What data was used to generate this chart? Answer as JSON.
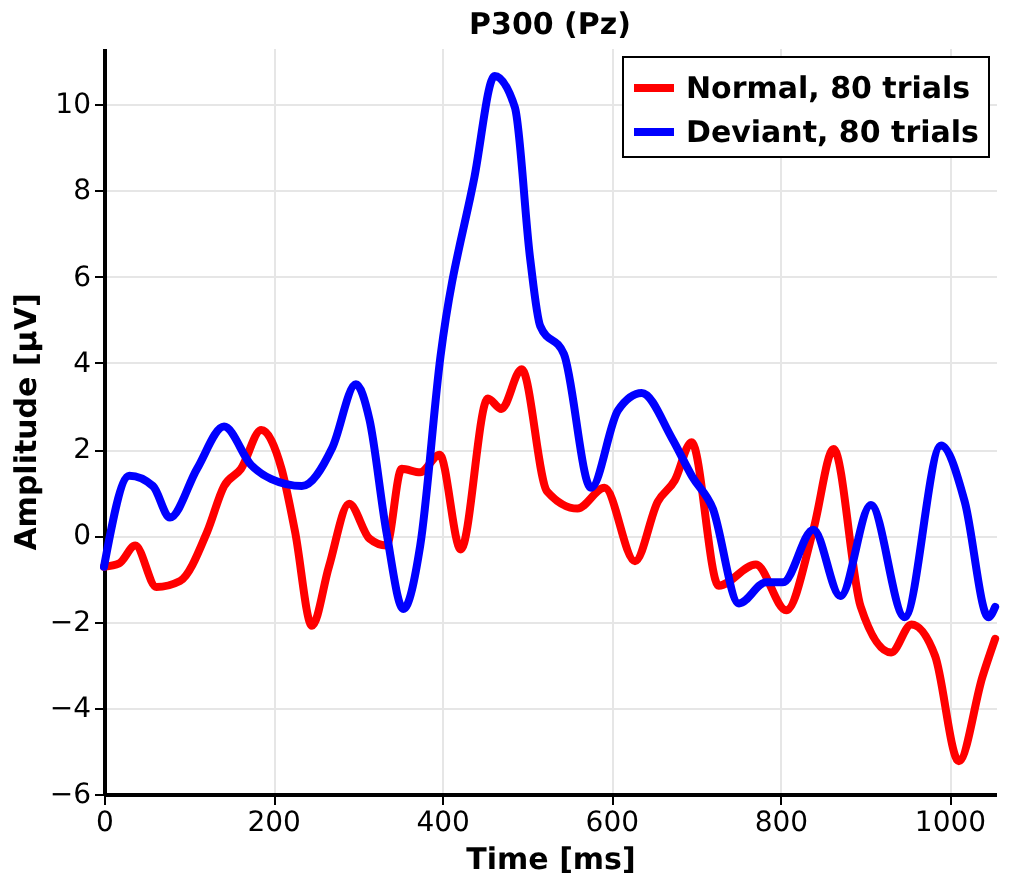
{
  "chart_data": {
    "type": "line",
    "title": "P300 (Pz)",
    "xlabel": "Time [ms]",
    "ylabel": "Amplitude [µV]",
    "xlim": [
      0,
      1055
    ],
    "ylim": [
      -6,
      11.3
    ],
    "xticks": [
      0,
      200,
      400,
      600,
      800,
      1000
    ],
    "yticks": [
      -6,
      -4,
      -2,
      0,
      2,
      4,
      6,
      8,
      10
    ],
    "grid": true,
    "legend": "top right",
    "line_style": "solid",
    "marker": "none",
    "series": [
      {
        "name": "Normal, 80 trials",
        "color": "#ff0000",
        "x": [
          0,
          18,
          37,
          62,
          90,
          122,
          142,
          162,
          186,
          210,
          226,
          246,
          266,
          290,
          314,
          334,
          352,
          374,
          397,
          422,
          454,
          470,
          494,
          524,
          560,
          592,
          628,
          655,
          675,
          695,
          727,
          771,
          807,
          839,
          863,
          895,
          931,
          955,
          983,
          1011,
          1039,
          1054
        ],
        "values": [
          -0.73,
          -0.65,
          -0.24,
          -1.2,
          -1.06,
          0.08,
          1.14,
          1.54,
          2.44,
          1.54,
          0.08,
          -2.1,
          -0.73,
          0.73,
          -0.08,
          -0.24,
          1.54,
          1.46,
          1.87,
          -0.33,
          3.17,
          2.93,
          3.85,
          1.02,
          0.62,
          1.1,
          -0.6,
          0.78,
          1.27,
          2.16,
          -1.17,
          -0.68,
          -1.74,
          0.13,
          2.0,
          -1.66,
          -2.72,
          -2.07,
          -2.8,
          -5.24,
          -3.28,
          -2.4
        ]
      },
      {
        "name": "Deviant, 80 trials",
        "color": "#0000ff",
        "x": [
          0,
          30,
          58,
          78,
          110,
          142,
          174,
          198,
          234,
          270,
          298,
          314,
          334,
          354,
          374,
          398,
          438,
          462,
          486,
          504,
          516,
          544,
          576,
          608,
          636,
          672,
          696,
          720,
          751,
          783,
          803,
          839,
          871,
          907,
          947,
          990,
          1018,
          1046,
          1054
        ],
        "values": [
          -0.73,
          1.38,
          1.14,
          0.41,
          1.54,
          2.52,
          1.63,
          1.3,
          1.14,
          2.03,
          3.5,
          2.68,
          0.08,
          -1.71,
          -0.24,
          4.15,
          8.29,
          10.65,
          9.92,
          6.42,
          4.85,
          4.2,
          1.1,
          2.9,
          3.3,
          2.24,
          1.35,
          0.62,
          -1.58,
          -1.09,
          -1.09,
          0.13,
          -1.41,
          0.7,
          -1.9,
          2.08,
          0.78,
          -1.9,
          -1.66
        ]
      }
    ]
  }
}
